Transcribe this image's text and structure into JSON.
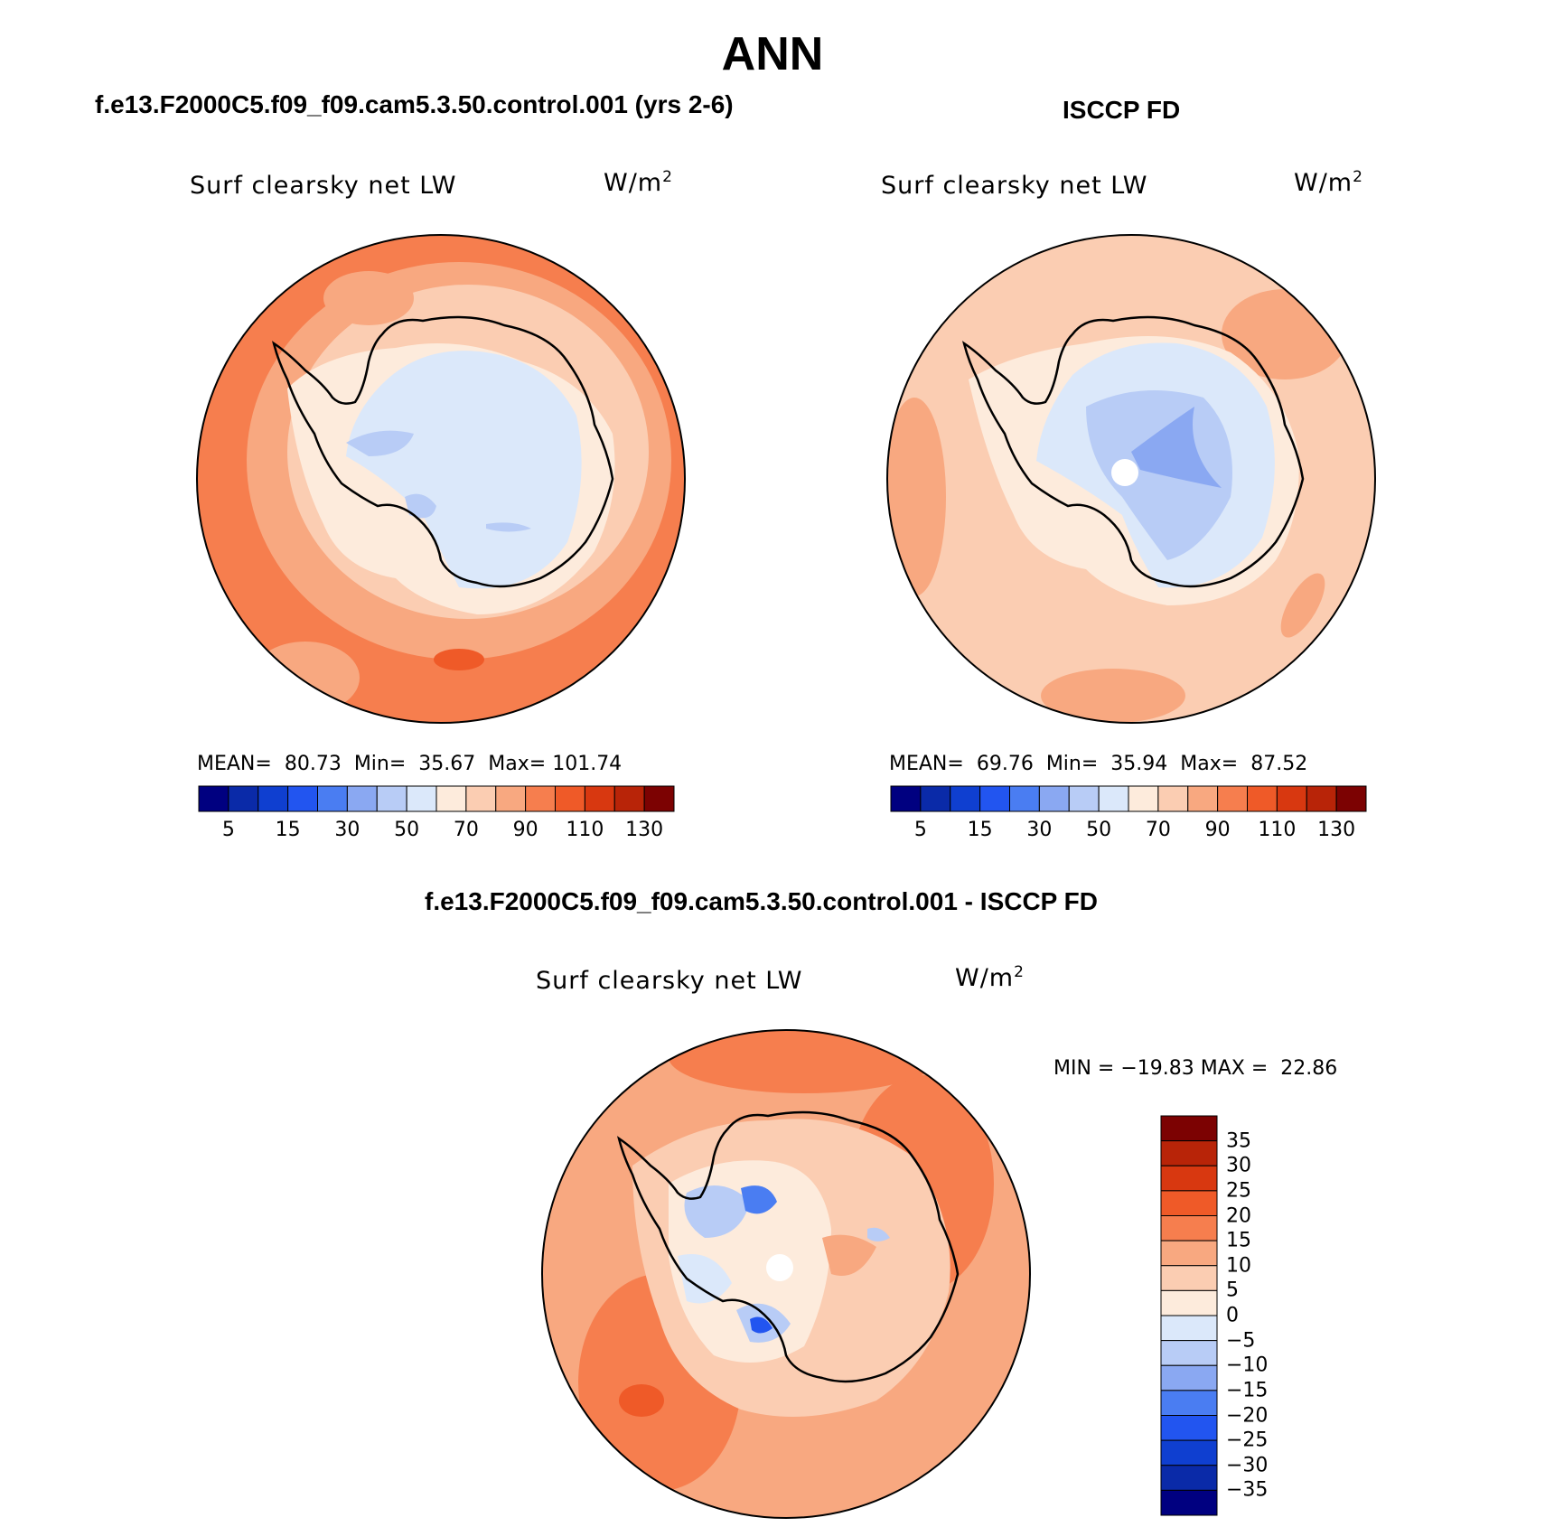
{
  "page": {
    "title": "ANN"
  },
  "top_left": {
    "case_title": "f.e13.F2000C5.f09_f09.cam5.3.50.control.001 (yrs 2-6)",
    "variable_label": "Surf clearsky net LW",
    "units": "W/m",
    "units_exp": "2",
    "stats": {
      "mean_label": "MEAN=",
      "mean": "80.73",
      "min_label": "Min=",
      "min": "35.67",
      "max_label": "Max=",
      "max": "101.74"
    }
  },
  "top_right": {
    "case_title": "ISCCP FD",
    "variable_label": "Surf clearsky net LW",
    "units": "W/m",
    "units_exp": "2",
    "stats": {
      "mean_label": "MEAN=",
      "mean": "69.76",
      "min_label": "Min=",
      "min": "35.94",
      "max_label": "Max=",
      "max": "87.52"
    }
  },
  "colorbar_top": {
    "colors": [
      "#000080",
      "#0a2aa8",
      "#0f3fd0",
      "#2255f0",
      "#4a7df2",
      "#8aa8f2",
      "#b8ccf6",
      "#dbe8fa",
      "#fdebdc",
      "#fbcdb2",
      "#f8a880",
      "#f67e4e",
      "#ef5a28",
      "#d83810",
      "#b82408",
      "#7c0202"
    ],
    "tick_labels": [
      "5",
      "15",
      "30",
      "50",
      "70",
      "90",
      "110",
      "130"
    ]
  },
  "bottom": {
    "case_title": "f.e13.F2000C5.f09_f09.cam5.3.50.control.001 - ISCCP FD",
    "variable_label": "Surf clearsky net LW",
    "units": "W/m",
    "units_exp": "2",
    "minmax": "MIN = −19.83 MAX =  22.86"
  },
  "colorbar_diff": {
    "colors": [
      "#7c0202",
      "#b82408",
      "#d83810",
      "#ef5a28",
      "#f67e4e",
      "#f8a880",
      "#fbcdb2",
      "#fdebdc",
      "#dbe8fa",
      "#b8ccf6",
      "#8aa8f2",
      "#4a7df2",
      "#2255f0",
      "#0f3fd0",
      "#0a2aa8",
      "#000080"
    ],
    "tick_labels": [
      "35",
      "30",
      "25",
      "20",
      "15",
      "10",
      "5",
      "0",
      "−5",
      "−10",
      "−15",
      "−20",
      "−25",
      "−30",
      "−35"
    ]
  },
  "map_colors": {
    "ocean_far_left": "#f67e4e",
    "ocean_far_right": "#fbcdb2",
    "ocean_far_diff": "#f8a880",
    "ice_left": "#dbe8fa",
    "ice_right": "#b8ccf6",
    "coastline": "#000000"
  }
}
